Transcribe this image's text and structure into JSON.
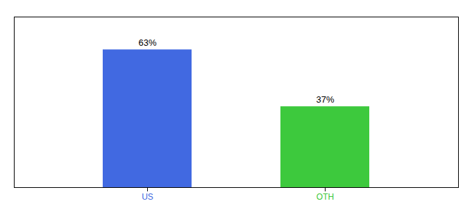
{
  "chart_data": {
    "type": "bar",
    "categories": [
      "US",
      "OTH"
    ],
    "values": [
      63,
      37
    ],
    "value_labels": [
      "63%",
      "37%"
    ],
    "colors": [
      "#4169e1",
      "#3dc93d"
    ],
    "ylim": [
      0,
      78
    ],
    "data_labels": true,
    "tick_labels": "x"
  }
}
